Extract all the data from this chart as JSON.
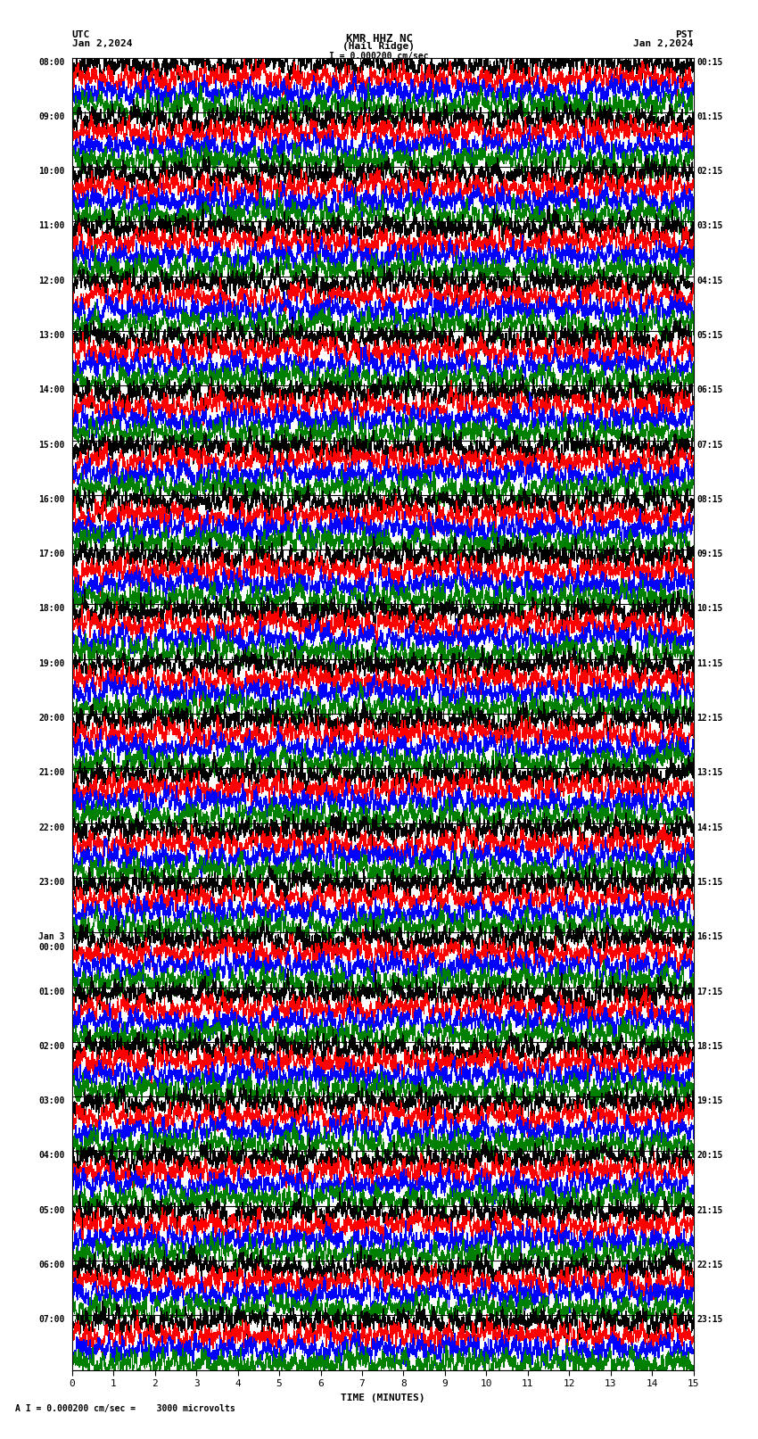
{
  "title_line1": "KMR HHZ NC",
  "title_line2": "(Hail Ridge)",
  "scale_text": "I = 0.000200 cm/sec",
  "utc_label": "UTC",
  "pst_label": "PST",
  "date_left": "Jan 2,2024",
  "date_right": "Jan 2,2024",
  "xlabel": "TIME (MINUTES)",
  "scale_bottom": "A I = 0.000200 cm/sec =    3000 microvolts",
  "xlim": [
    0,
    15
  ],
  "xticks": [
    0,
    1,
    2,
    3,
    4,
    5,
    6,
    7,
    8,
    9,
    10,
    11,
    12,
    13,
    14,
    15
  ],
  "figure_width": 8.5,
  "figure_height": 16.13,
  "figure_dpi": 100,
  "bg_color": "#ffffff",
  "trace_colors": [
    "black",
    "red",
    "blue",
    "green"
  ],
  "n_rows": 32,
  "utc_times_left": [
    "08:00",
    "09:00",
    "10:00",
    "11:00",
    "12:00",
    "13:00",
    "14:00",
    "15:00",
    "16:00",
    "17:00",
    "18:00",
    "19:00",
    "20:00",
    "21:00",
    "22:00",
    "23:00",
    "Jan 3\n00:00",
    "01:00",
    "02:00",
    "03:00",
    "04:00",
    "05:00",
    "06:00",
    "07:00"
  ],
  "pst_times_right": [
    "00:15",
    "01:15",
    "02:15",
    "03:15",
    "04:15",
    "05:15",
    "06:15",
    "07:15",
    "08:15",
    "09:15",
    "10:15",
    "11:15",
    "12:15",
    "13:15",
    "14:15",
    "15:15",
    "16:15",
    "17:15",
    "18:15",
    "19:15",
    "20:15",
    "21:15",
    "22:15",
    "23:15"
  ],
  "trace_linewidth": 0.4,
  "separator_linewidth": 0.8,
  "separator_color": "black",
  "n_points": 3000,
  "amp_scale": 0.45
}
